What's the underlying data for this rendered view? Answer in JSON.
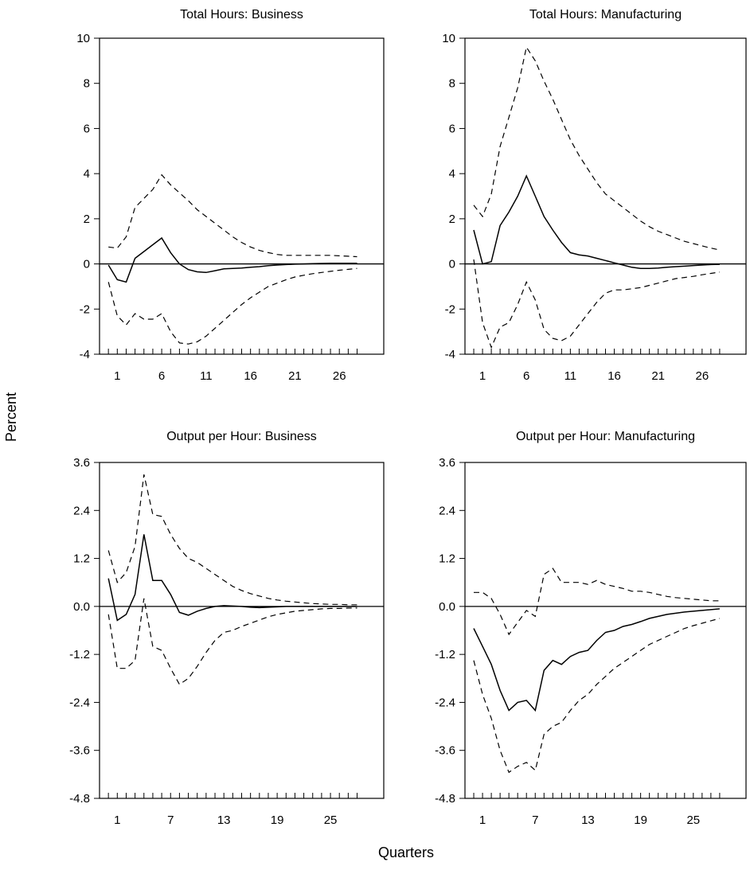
{
  "figure": {
    "ylabel": "Percent",
    "xlabel": "Quarters"
  },
  "chart_data": [
    {
      "type": "line",
      "title": "Total Hours: Business",
      "ylim": [
        -4,
        10
      ],
      "yticks": [
        10,
        8,
        6,
        4,
        2,
        0,
        -2,
        -4
      ],
      "ytick_labels": [
        "10",
        "8",
        "6",
        "4",
        "2",
        "0",
        "-2",
        "-4"
      ],
      "xlim": [
        -1,
        31
      ],
      "xticks": [
        1,
        6,
        11,
        16,
        21,
        26
      ],
      "xtick_labels": [
        "1",
        "6",
        "11",
        "16",
        "21",
        "26"
      ],
      "minor_xticks": [
        0,
        1,
        2,
        3,
        4,
        5,
        6,
        7,
        8,
        9,
        10,
        11,
        12,
        13,
        14,
        15,
        16,
        17,
        18,
        19,
        20,
        21,
        22,
        23,
        24,
        25,
        26,
        27,
        28
      ],
      "zero_line": true,
      "x": [
        0,
        1,
        2,
        3,
        4,
        5,
        6,
        7,
        8,
        9,
        10,
        11,
        12,
        13,
        14,
        15,
        16,
        17,
        18,
        19,
        20,
        21,
        22,
        23,
        24,
        25,
        26,
        27,
        28
      ],
      "series": [
        {
          "style": "solid",
          "values": [
            -0.05,
            -0.7,
            -0.8,
            0.25,
            0.55,
            0.85,
            1.15,
            0.5,
            0.0,
            -0.25,
            -0.35,
            -0.38,
            -0.3,
            -0.22,
            -0.2,
            -0.18,
            -0.15,
            -0.12,
            -0.08,
            -0.05,
            -0.03,
            -0.01,
            0.0,
            0.01,
            0.02,
            0.03,
            0.03,
            0.03,
            0.03
          ]
        },
        {
          "style": "dashed",
          "values": [
            0.75,
            0.7,
            1.2,
            2.5,
            2.9,
            3.3,
            3.95,
            3.5,
            3.15,
            2.8,
            2.4,
            2.1,
            1.8,
            1.5,
            1.2,
            0.95,
            0.75,
            0.6,
            0.5,
            0.42,
            0.38,
            0.38,
            0.38,
            0.38,
            0.38,
            0.38,
            0.36,
            0.34,
            0.32
          ]
        },
        {
          "style": "dashed",
          "values": [
            -0.8,
            -2.3,
            -2.7,
            -2.2,
            -2.45,
            -2.45,
            -2.2,
            -3.0,
            -3.5,
            -3.55,
            -3.45,
            -3.2,
            -2.85,
            -2.5,
            -2.15,
            -1.8,
            -1.5,
            -1.25,
            -1.0,
            -0.85,
            -0.7,
            -0.58,
            -0.5,
            -0.43,
            -0.38,
            -0.33,
            -0.28,
            -0.24,
            -0.2
          ]
        }
      ]
    },
    {
      "type": "line",
      "title": "Total Hours: Manufacturing",
      "ylim": [
        -4,
        10
      ],
      "yticks": [
        10,
        8,
        6,
        4,
        2,
        0,
        -2,
        -4
      ],
      "ytick_labels": [
        "10",
        "8",
        "6",
        "4",
        "2",
        "0",
        "-2",
        "-4"
      ],
      "xlim": [
        -1,
        31
      ],
      "xticks": [
        1,
        6,
        11,
        16,
        21,
        26
      ],
      "xtick_labels": [
        "1",
        "6",
        "11",
        "16",
        "21",
        "26"
      ],
      "minor_xticks": [
        0,
        1,
        2,
        3,
        4,
        5,
        6,
        7,
        8,
        9,
        10,
        11,
        12,
        13,
        14,
        15,
        16,
        17,
        18,
        19,
        20,
        21,
        22,
        23,
        24,
        25,
        26,
        27,
        28
      ],
      "zero_line": true,
      "x": [
        0,
        1,
        2,
        3,
        4,
        5,
        6,
        7,
        8,
        9,
        10,
        11,
        12,
        13,
        14,
        15,
        16,
        17,
        18,
        19,
        20,
        21,
        22,
        23,
        24,
        25,
        26,
        27,
        28
      ],
      "series": [
        {
          "style": "solid",
          "values": [
            1.5,
            0.0,
            0.1,
            1.7,
            2.3,
            3.0,
            3.9,
            3.0,
            2.1,
            1.5,
            0.95,
            0.5,
            0.4,
            0.35,
            0.25,
            0.15,
            0.05,
            -0.05,
            -0.15,
            -0.2,
            -0.2,
            -0.18,
            -0.15,
            -0.12,
            -0.1,
            -0.07,
            -0.05,
            -0.03,
            -0.02
          ]
        },
        {
          "style": "dashed",
          "values": [
            2.6,
            2.1,
            3.1,
            5.2,
            6.5,
            7.8,
            9.6,
            9.0,
            8.1,
            7.3,
            6.4,
            5.5,
            4.8,
            4.2,
            3.6,
            3.1,
            2.8,
            2.5,
            2.2,
            1.9,
            1.65,
            1.45,
            1.3,
            1.15,
            1.0,
            0.9,
            0.8,
            0.7,
            0.62
          ]
        },
        {
          "style": "dashed",
          "values": [
            0.2,
            -2.6,
            -3.7,
            -2.8,
            -2.6,
            -1.8,
            -0.8,
            -1.6,
            -2.9,
            -3.3,
            -3.4,
            -3.2,
            -2.7,
            -2.2,
            -1.7,
            -1.3,
            -1.15,
            -1.15,
            -1.1,
            -1.05,
            -0.95,
            -0.85,
            -0.75,
            -0.65,
            -0.6,
            -0.55,
            -0.48,
            -0.42,
            -0.36
          ]
        }
      ]
    },
    {
      "type": "line",
      "title": "Output per Hour: Business",
      "ylim": [
        -4.8,
        3.6
      ],
      "yticks": [
        3.6,
        2.4,
        1.2,
        0.0,
        -1.2,
        -2.4,
        -3.6,
        -4.8
      ],
      "ytick_labels": [
        "3.6",
        "2.4",
        "1.2",
        "0.0",
        "-1.2",
        "-2.4",
        "-3.6",
        "-4.8"
      ],
      "xlim": [
        -1,
        31
      ],
      "xticks": [
        1,
        7,
        13,
        19,
        25
      ],
      "xtick_labels": [
        "1",
        "7",
        "13",
        "19",
        "25"
      ],
      "minor_xticks": [
        0,
        1,
        2,
        3,
        4,
        5,
        6,
        7,
        8,
        9,
        10,
        11,
        12,
        13,
        14,
        15,
        16,
        17,
        18,
        19,
        20,
        21,
        22,
        23,
        24,
        25,
        26,
        27,
        28
      ],
      "zero_line": true,
      "x": [
        0,
        1,
        2,
        3,
        4,
        5,
        6,
        7,
        8,
        9,
        10,
        11,
        12,
        13,
        14,
        15,
        16,
        17,
        18,
        19,
        20,
        21,
        22,
        23,
        24,
        25,
        26,
        27,
        28
      ],
      "series": [
        {
          "style": "solid",
          "values": [
            0.7,
            -0.35,
            -0.2,
            0.3,
            1.8,
            0.65,
            0.65,
            0.3,
            -0.15,
            -0.22,
            -0.12,
            -0.05,
            0.0,
            0.02,
            0.01,
            0.0,
            -0.02,
            -0.03,
            -0.02,
            -0.01,
            0.0,
            0.0,
            0.0,
            0.0,
            0.0,
            0.0,
            0.0,
            0.0,
            0.0
          ]
        },
        {
          "style": "dashed",
          "values": [
            1.4,
            0.6,
            0.85,
            1.5,
            3.3,
            2.3,
            2.25,
            1.8,
            1.45,
            1.2,
            1.1,
            0.95,
            0.8,
            0.65,
            0.5,
            0.4,
            0.32,
            0.26,
            0.2,
            0.16,
            0.13,
            0.11,
            0.09,
            0.07,
            0.06,
            0.05,
            0.05,
            0.04,
            0.04
          ]
        },
        {
          "style": "dashed",
          "values": [
            -0.2,
            -1.55,
            -1.55,
            -1.35,
            0.2,
            -1.0,
            -1.1,
            -1.55,
            -1.95,
            -1.8,
            -1.5,
            -1.15,
            -0.85,
            -0.65,
            -0.6,
            -0.5,
            -0.42,
            -0.34,
            -0.26,
            -0.2,
            -0.16,
            -0.12,
            -0.1,
            -0.08,
            -0.06,
            -0.05,
            -0.05,
            -0.04,
            -0.04
          ]
        }
      ]
    },
    {
      "type": "line",
      "title": "Output per Hour: Manufacturing",
      "ylim": [
        -4.8,
        3.6
      ],
      "yticks": [
        3.6,
        2.4,
        1.2,
        0.0,
        -1.2,
        -2.4,
        -3.6,
        -4.8
      ],
      "ytick_labels": [
        "3.6",
        "2.4",
        "1.2",
        "0.0",
        "-1.2",
        "-2.4",
        "-3.6",
        "-4.8"
      ],
      "xlim": [
        -1,
        31
      ],
      "xticks": [
        1,
        7,
        13,
        19,
        25
      ],
      "xtick_labels": [
        "1",
        "7",
        "13",
        "19",
        "25"
      ],
      "minor_xticks": [
        0,
        1,
        2,
        3,
        4,
        5,
        6,
        7,
        8,
        9,
        10,
        11,
        12,
        13,
        14,
        15,
        16,
        17,
        18,
        19,
        20,
        21,
        22,
        23,
        24,
        25,
        26,
        27,
        28
      ],
      "zero_line": true,
      "x": [
        0,
        1,
        2,
        3,
        4,
        5,
        6,
        7,
        8,
        9,
        10,
        11,
        12,
        13,
        14,
        15,
        16,
        17,
        18,
        19,
        20,
        21,
        22,
        23,
        24,
        25,
        26,
        27,
        28
      ],
      "series": [
        {
          "style": "solid",
          "values": [
            -0.55,
            -1.0,
            -1.45,
            -2.1,
            -2.6,
            -2.4,
            -2.35,
            -2.6,
            -1.6,
            -1.35,
            -1.45,
            -1.25,
            -1.15,
            -1.1,
            -0.85,
            -0.65,
            -0.6,
            -0.5,
            -0.45,
            -0.38,
            -0.3,
            -0.25,
            -0.2,
            -0.17,
            -0.14,
            -0.12,
            -0.1,
            -0.08,
            -0.06
          ]
        },
        {
          "style": "dashed",
          "values": [
            0.35,
            0.35,
            0.2,
            -0.2,
            -0.7,
            -0.4,
            -0.1,
            -0.25,
            0.8,
            0.95,
            0.6,
            0.6,
            0.6,
            0.55,
            0.65,
            0.55,
            0.5,
            0.45,
            0.38,
            0.38,
            0.35,
            0.3,
            0.25,
            0.22,
            0.2,
            0.18,
            0.16,
            0.14,
            0.14
          ]
        },
        {
          "style": "dashed",
          "values": [
            -1.35,
            -2.2,
            -2.8,
            -3.6,
            -4.15,
            -4.0,
            -3.9,
            -4.1,
            -3.2,
            -3.0,
            -2.9,
            -2.6,
            -2.35,
            -2.2,
            -1.95,
            -1.75,
            -1.55,
            -1.4,
            -1.25,
            -1.1,
            -0.95,
            -0.85,
            -0.75,
            -0.65,
            -0.55,
            -0.48,
            -0.42,
            -0.36,
            -0.3
          ]
        }
      ]
    }
  ]
}
